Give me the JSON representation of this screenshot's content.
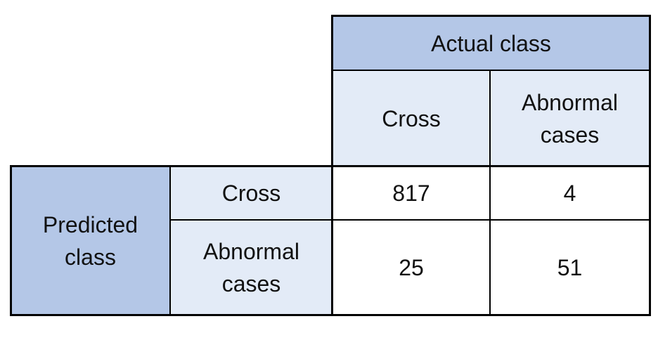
{
  "matrix": {
    "actual_header": "Actual class",
    "predicted_header": "Predicted class",
    "actual_columns": [
      "Cross",
      "Abnormal\ncases"
    ],
    "predicted_rows": [
      "Cross",
      "Abnormal\ncases"
    ],
    "values": [
      [
        "817",
        "4"
      ],
      [
        "25",
        "51"
      ]
    ]
  }
}
